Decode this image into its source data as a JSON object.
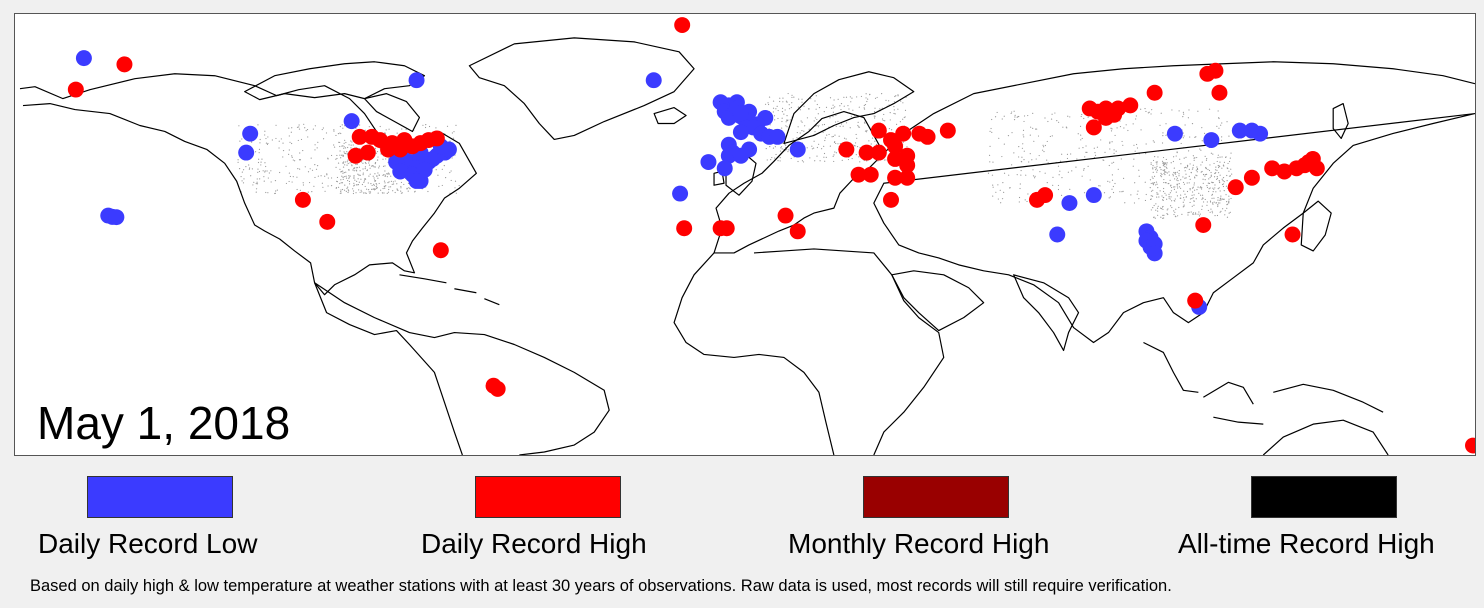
{
  "date": "May 1, 2018",
  "legend": [
    {
      "label": "Daily Record Low",
      "color": "#3b3bff"
    },
    {
      "label": "Daily Record High",
      "color": "#ff0000"
    },
    {
      "label": "Monthly Record High",
      "color": "#990000"
    },
    {
      "label": "All-time Record High",
      "color": "#000000"
    }
  ],
  "footnote": "Based on daily high & low temperature at weather stations with at least 30 years of observations.  Raw data is used, most records will still require verification.",
  "map": {
    "projection": "equirectangular",
    "lon_range": [
      -180,
      180
    ],
    "lat_range": [
      -55,
      85
    ]
  },
  "records": {
    "daily_low": [
      [
        -163,
        71
      ],
      [
        -97,
        51
      ],
      [
        -122,
        47
      ],
      [
        -123,
        41
      ],
      [
        -157,
        21
      ],
      [
        -156,
        20.6
      ],
      [
        -155,
        20.5
      ],
      [
        -81,
        64
      ],
      [
        -22.5,
        64
      ],
      [
        -83,
        37
      ],
      [
        -84,
        36
      ],
      [
        -81,
        36
      ],
      [
        -80,
        37
      ],
      [
        -82,
        38
      ],
      [
        -78,
        38
      ],
      [
        -77,
        39
      ],
      [
        -79,
        39
      ],
      [
        -80,
        41
      ],
      [
        -76,
        40
      ],
      [
        -74,
        41
      ],
      [
        -73,
        42
      ],
      [
        -75,
        43
      ],
      [
        -84,
        39
      ],
      [
        -86,
        38
      ],
      [
        -85,
        35
      ],
      [
        -82,
        34
      ],
      [
        -80,
        32
      ],
      [
        -79,
        35.5
      ],
      [
        -81,
        32
      ],
      [
        -6,
        57
      ],
      [
        -4,
        56
      ],
      [
        -2,
        57
      ],
      [
        -5,
        54
      ],
      [
        -3,
        53
      ],
      [
        -1,
        52.5
      ],
      [
        -4,
        52
      ],
      [
        0,
        51.5
      ],
      [
        1,
        54
      ],
      [
        -2,
        55
      ],
      [
        -1,
        53.5
      ],
      [
        5,
        52
      ],
      [
        3,
        50
      ],
      [
        2,
        49
      ],
      [
        4,
        47
      ],
      [
        6,
        46
      ],
      [
        8,
        46
      ],
      [
        -1,
        47.5
      ],
      [
        -4,
        43.5
      ],
      [
        -3,
        41
      ],
      [
        -4,
        40
      ],
      [
        1,
        42
      ],
      [
        13,
        42
      ],
      [
        -1,
        40
      ],
      [
        -5,
        36
      ],
      [
        -9,
        38
      ],
      [
        -16,
        28
      ],
      [
        80,
        25
      ],
      [
        86,
        27.5
      ],
      [
        77,
        15
      ],
      [
        99,
        16
      ],
      [
        100,
        14
      ],
      [
        99,
        13
      ],
      [
        100,
        11
      ],
      [
        101,
        12
      ],
      [
        101,
        9
      ],
      [
        106,
        47
      ],
      [
        115,
        45
      ],
      [
        122,
        48
      ],
      [
        125,
        48
      ],
      [
        127,
        47
      ],
      [
        112,
        -8
      ]
    ],
    "daily_high": [
      [
        -153,
        69
      ],
      [
        -165,
        61
      ],
      [
        -15.5,
        81.5
      ],
      [
        -95,
        46
      ],
      [
        -92,
        46
      ],
      [
        -90,
        45
      ],
      [
        -87,
        44
      ],
      [
        -84,
        45
      ],
      [
        -85,
        42
      ],
      [
        -88,
        42
      ],
      [
        -82,
        43
      ],
      [
        -80,
        44
      ],
      [
        -78,
        45
      ],
      [
        -76,
        45.5
      ],
      [
        -96,
        40
      ],
      [
        -93,
        41
      ],
      [
        -109,
        26
      ],
      [
        -103,
        19
      ],
      [
        -75,
        10
      ],
      [
        -62,
        -33
      ],
      [
        -61,
        -34
      ],
      [
        33,
        48
      ],
      [
        39,
        47
      ],
      [
        43,
        47
      ],
      [
        45,
        46
      ],
      [
        50,
        48
      ],
      [
        36,
        45
      ],
      [
        37,
        43
      ],
      [
        25,
        42
      ],
      [
        30,
        41
      ],
      [
        33,
        41
      ],
      [
        37,
        39
      ],
      [
        40,
        40
      ],
      [
        40,
        37
      ],
      [
        28,
        34
      ],
      [
        31,
        34
      ],
      [
        37,
        33
      ],
      [
        40,
        33
      ],
      [
        36,
        26
      ],
      [
        -15,
        17
      ],
      [
        -6,
        17
      ],
      [
        -4.5,
        17
      ],
      [
        10,
        21
      ],
      [
        13,
        16
      ],
      [
        72,
        26
      ],
      [
        74,
        27.5
      ],
      [
        85,
        55
      ],
      [
        87,
        54
      ],
      [
        89,
        55
      ],
      [
        91,
        53
      ],
      [
        89,
        52
      ],
      [
        92,
        55
      ],
      [
        95,
        56
      ],
      [
        101,
        60
      ],
      [
        86,
        49
      ],
      [
        114,
        66
      ],
      [
        116,
        67
      ],
      [
        117,
        60
      ],
      [
        130,
        36
      ],
      [
        133,
        35
      ],
      [
        136,
        36
      ],
      [
        138,
        37
      ],
      [
        139,
        38
      ],
      [
        140,
        39
      ],
      [
        141,
        36
      ],
      [
        125,
        33
      ],
      [
        121,
        30
      ],
      [
        113,
        18
      ],
      [
        135,
        15
      ],
      [
        111,
        -6
      ],
      [
        179.5,
        -52
      ]
    ],
    "monthly_high": [],
    "alltime_high": []
  }
}
